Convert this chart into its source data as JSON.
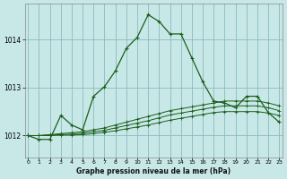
{
  "title": "Graphe pression niveau de la mer (hPa)",
  "background_color": "#c8e8e8",
  "grid_color": "#88bbbb",
  "line_color": "#1a5e1a",
  "x_ticks": [
    0,
    1,
    2,
    3,
    4,
    5,
    6,
    7,
    8,
    9,
    10,
    11,
    12,
    13,
    14,
    15,
    16,
    17,
    18,
    19,
    20,
    21,
    22,
    23
  ],
  "y_ticks": [
    1012,
    1013,
    1014
  ],
  "ylim": [
    1011.55,
    1014.75
  ],
  "xlim": [
    -0.3,
    23.3
  ],
  "series_main": {
    "x": [
      0,
      1,
      2,
      3,
      4,
      5,
      6,
      7,
      8,
      9,
      10,
      11,
      12,
      13,
      14,
      15,
      16,
      17,
      18,
      19,
      20,
      21,
      22,
      23
    ],
    "y": [
      1012.0,
      1011.92,
      1011.92,
      1012.42,
      1012.22,
      1012.12,
      1012.82,
      1013.02,
      1013.35,
      1013.82,
      1014.05,
      1014.52,
      1014.38,
      1014.12,
      1014.12,
      1013.62,
      1013.12,
      1012.72,
      1012.68,
      1012.58,
      1012.82,
      1012.82,
      1012.48,
      1012.28
    ]
  },
  "series_flat1": {
    "x": [
      0,
      1,
      2,
      3,
      4,
      5,
      6,
      7,
      8,
      9,
      10,
      11,
      12,
      13,
      14,
      15,
      16,
      17,
      18,
      19,
      20,
      21,
      22,
      23
    ],
    "y": [
      1012.0,
      1012.0,
      1012.02,
      1012.04,
      1012.06,
      1012.08,
      1012.12,
      1012.16,
      1012.22,
      1012.28,
      1012.34,
      1012.4,
      1012.46,
      1012.52,
      1012.56,
      1012.6,
      1012.64,
      1012.68,
      1012.72,
      1012.72,
      1012.72,
      1012.72,
      1012.68,
      1012.62
    ]
  },
  "series_flat2": {
    "x": [
      0,
      1,
      2,
      3,
      4,
      5,
      6,
      7,
      8,
      9,
      10,
      11,
      12,
      13,
      14,
      15,
      16,
      17,
      18,
      19,
      20,
      21,
      22,
      23
    ],
    "y": [
      1012.0,
      1012.0,
      1012.01,
      1012.02,
      1012.03,
      1012.05,
      1012.08,
      1012.11,
      1012.16,
      1012.21,
      1012.26,
      1012.31,
      1012.37,
      1012.43,
      1012.47,
      1012.51,
      1012.55,
      1012.59,
      1012.62,
      1012.62,
      1012.62,
      1012.62,
      1012.58,
      1012.52
    ]
  },
  "series_flat3": {
    "x": [
      0,
      1,
      2,
      3,
      4,
      5,
      6,
      7,
      8,
      9,
      10,
      11,
      12,
      13,
      14,
      15,
      16,
      17,
      18,
      19,
      20,
      21,
      22,
      23
    ],
    "y": [
      1012.0,
      1012.0,
      1012.0,
      1012.01,
      1012.01,
      1012.02,
      1012.04,
      1012.07,
      1012.1,
      1012.14,
      1012.18,
      1012.22,
      1012.27,
      1012.32,
      1012.36,
      1012.4,
      1012.44,
      1012.48,
      1012.5,
      1012.5,
      1012.5,
      1012.5,
      1012.47,
      1012.42
    ]
  }
}
